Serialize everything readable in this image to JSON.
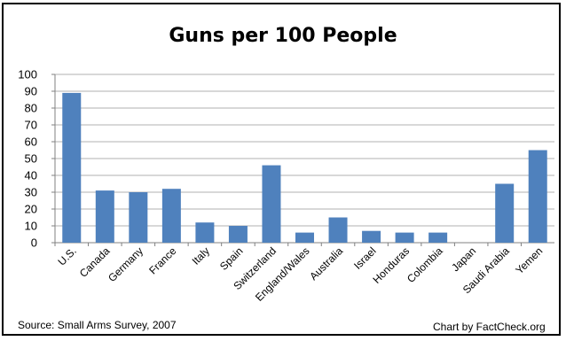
{
  "chart_data": {
    "type": "bar",
    "title": "Guns per 100 People",
    "categories": [
      "U.S.",
      "Canada",
      "Germany",
      "France",
      "Italy",
      "Spain",
      "Switzerland",
      "England/Wales",
      "Australia",
      "Israel",
      "Honduras",
      "Colombia",
      "Japan",
      "Saudi Arabia",
      "Yemen"
    ],
    "values": [
      89,
      31,
      30,
      32,
      12,
      10,
      46,
      6,
      15,
      7,
      6,
      6,
      0,
      35,
      55
    ],
    "ylim": [
      0,
      100
    ],
    "yticks": [
      "0",
      "10",
      "20",
      "30",
      "40",
      "50",
      "60",
      "70",
      "80",
      "90",
      "100"
    ],
    "grid": true,
    "bar_color": "#4f81bd",
    "xlabel": "",
    "ylabel": ""
  },
  "footer": {
    "source": "Source: Small Arms Survey, 2007",
    "credit": "Chart by FactCheck.org"
  }
}
